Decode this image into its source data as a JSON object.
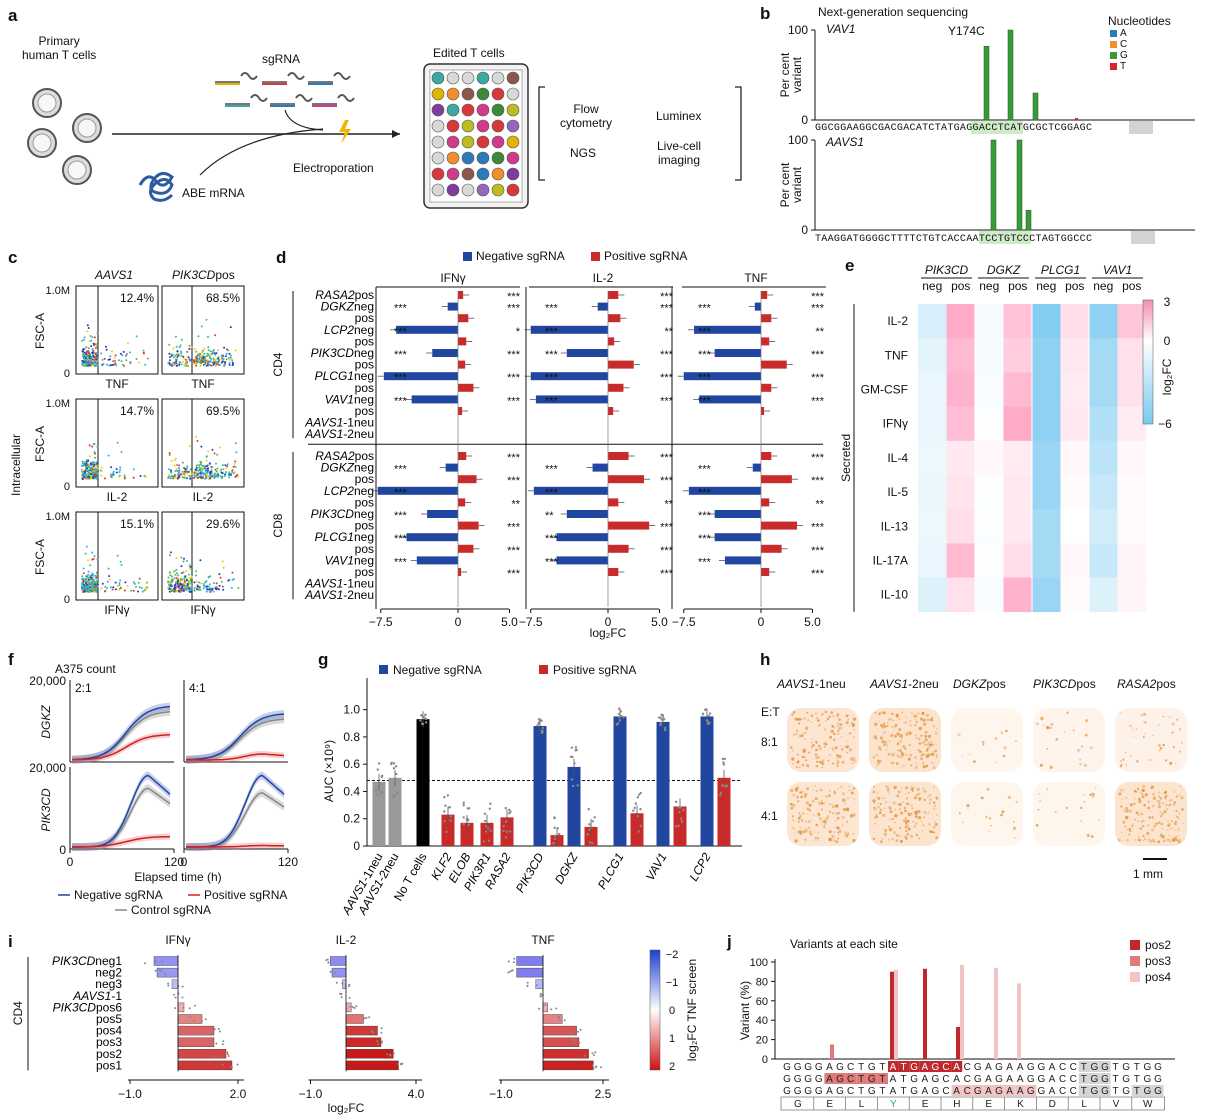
{
  "panels": {
    "a": "a",
    "b": "b",
    "c": "c",
    "d": "d",
    "e": "e",
    "f": "f",
    "g": "g",
    "h": "h",
    "i": "i",
    "j": "j"
  },
  "panel_a": {
    "primary_cells": "Primary\nhuman T cells",
    "primary_line1": "Primary",
    "primary_line2": "human T cells",
    "sgrna": "sgRNA",
    "abe": "ABE mRNA",
    "electroporation": "Electroporation",
    "edited": "Edited T cells",
    "assays": [
      "Flow",
      "cytometry",
      "Luminex",
      "NGS",
      "Live-cell",
      "imaging"
    ]
  },
  "panel_b": {
    "title": "Next-generation sequencing",
    "legend_title": "Nucleotides",
    "legend": [
      {
        "label": "A",
        "color": "#2b7bb9"
      },
      {
        "label": "C",
        "color": "#f28e2b"
      },
      {
        "label": "G",
        "color": "#3a9a3a"
      },
      {
        "label": "T",
        "color": "#d62728"
      }
    ],
    "ylabel_1": "Per cent",
    "ylabel_2": "variant",
    "vav1_label": "VAV1",
    "aavs1_label": "AAVS1",
    "mutation": "Y174C",
    "y100": "100",
    "y0": "0",
    "seq_vav1": "GGCGGAAGGCGACGACATCTATGAGGACCTCATGCGCTCGGAGC",
    "seq_aavs1": "TAAGGATGGGGCTTTTCTGTCACCAATCCTGTCCCTAGTGGCCC",
    "vav1_bars": [
      82,
      100,
      30
    ],
    "aavs1_bars": [
      100,
      100,
      22
    ]
  },
  "panel_c": {
    "col1": "AAVS1",
    "col2": "PIK3CDpos",
    "ylabel": "FSC-A",
    "side": "Intracellular",
    "ytop": "1.0M",
    "y0": "0",
    "rows": [
      {
        "x": "TNF",
        "p1": "12.4%",
        "p2": "68.5%"
      },
      {
        "x": "IL-2",
        "p1": "14.7%",
        "p2": "69.5%"
      },
      {
        "x": "IFNγ",
        "p1": "15.1%",
        "p2": "29.6%"
      }
    ]
  },
  "panel_d": {
    "legend_neg": "Negative sgRNA",
    "legend_pos": "Positive sgRNA",
    "cols": [
      "IFNγ",
      "IL-2",
      "TNF"
    ],
    "groups": [
      "CD4",
      "CD8"
    ],
    "xlabel": "log₂FC",
    "xticks": [
      "−7.5",
      "0",
      "5.0"
    ],
    "rows": [
      {
        "gene": "RASA2",
        "suffix": "pos",
        "italic_full": false
      },
      {
        "gene": "DGKZ",
        "suffix": "neg"
      },
      {
        "gene": "",
        "suffix": "pos"
      },
      {
        "gene": "LCP2",
        "suffix": "neg"
      },
      {
        "gene": "",
        "suffix": "pos"
      },
      {
        "gene": "PIK3CD",
        "suffix": "neg"
      },
      {
        "gene": "",
        "suffix": "pos"
      },
      {
        "gene": "PLCG1",
        "suffix": "neg"
      },
      {
        "gene": "",
        "suffix": "pos"
      },
      {
        "gene": "VAV1",
        "suffix": "neg"
      },
      {
        "gene": "",
        "suffix": "pos"
      },
      {
        "gene": "AAVS1",
        "suffix": "-1neu"
      },
      {
        "gene": "AAVS1",
        "suffix": "-2neu"
      }
    ],
    "cd4_values": {
      "IFNg": [
        0.5,
        -1.0,
        1.0,
        -6.0,
        0.8,
        -2.5,
        0.7,
        -7.2,
        1.5,
        -4.5,
        0.4,
        0,
        0
      ],
      "IL2": [
        1.0,
        -1.0,
        1.2,
        -7.5,
        0.6,
        -4.0,
        2.5,
        -7.5,
        1.5,
        -7.0,
        0.5,
        0,
        0
      ],
      "TNF": [
        0.6,
        -0.6,
        1.0,
        -6.5,
        0.8,
        -4.5,
        2.5,
        -7.5,
        1.0,
        -6.0,
        0.3,
        0,
        0
      ]
    },
    "cd8_values": {
      "IFNg": [
        0.8,
        -1.2,
        1.8,
        -7.8,
        0.7,
        -3.0,
        2.0,
        -5.0,
        1.5,
        -4.0,
        0.3,
        0,
        0
      ],
      "IL2": [
        2.0,
        -1.5,
        3.5,
        -7.2,
        1.0,
        -4.0,
        4.0,
        -5.0,
        2.0,
        -5.0,
        1.0,
        0,
        0
      ],
      "TNF": [
        1.0,
        -0.8,
        3.0,
        -7.0,
        0.8,
        -4.5,
        3.5,
        -4.5,
        2.0,
        -3.5,
        0.8,
        0,
        0
      ]
    },
    "cd4_sig": {
      "IFNg_left": [
        "",
        "***",
        "",
        "***",
        "",
        "***",
        "",
        "***",
        "",
        "***",
        "",
        "",
        ""
      ],
      "IFNg_right": [
        "***",
        "***",
        "",
        "*",
        "",
        "***",
        "",
        "***",
        "",
        "***",
        "",
        "",
        ""
      ],
      "IL2_left": [
        "",
        "***",
        "",
        "***",
        "",
        "***",
        "",
        "***",
        "",
        "***",
        "",
        "",
        ""
      ],
      "IL2_right": [
        "***",
        "***",
        "",
        "**",
        "",
        "***",
        "",
        "***",
        "",
        "***",
        "",
        "",
        ""
      ],
      "TNF_left": [
        "",
        "***",
        "",
        "***",
        "",
        "***",
        "",
        "***",
        "",
        "***",
        "",
        "",
        ""
      ],
      "TNF_right": [
        "***",
        "***",
        "",
        "**",
        "",
        "***",
        "",
        "***",
        "",
        "***",
        "",
        "",
        ""
      ]
    }
  },
  "panel_e": {
    "genes": [
      "PIK3CD",
      "DGKZ",
      "PLCG1",
      "VAV1"
    ],
    "sub": [
      "neg",
      "pos"
    ],
    "rows": [
      "IL-2",
      "TNF",
      "GM-CSF",
      "IFNγ",
      "IL-4",
      "IL-5",
      "IL-13",
      "IL-17A",
      "IL-10"
    ],
    "side": "Secreted",
    "scale_top": "3",
    "scale_mid": "0",
    "scale_bot": "−6",
    "scale_label": "log₂FC",
    "values": [
      [
        -1.8,
        2.2,
        -0.5,
        1.6,
        -5.5,
        0.9,
        -5.0,
        1.5
      ],
      [
        -1.2,
        1.8,
        -0.4,
        1.3,
        -5.0,
        0.6,
        -4.0,
        0.8
      ],
      [
        -1.0,
        2.0,
        -0.3,
        1.8,
        -5.0,
        0.5,
        -4.0,
        0.8
      ],
      [
        -1.0,
        1.7,
        -0.2,
        2.2,
        -5.0,
        0.6,
        -3.5,
        0.5
      ],
      [
        -0.8,
        0.6,
        0.2,
        0.5,
        -4.5,
        0.2,
        -3.0,
        0.2
      ],
      [
        -0.9,
        0.7,
        -0.1,
        0.6,
        -4.5,
        0.1,
        -2.5,
        0.1
      ],
      [
        -0.8,
        0.9,
        -0.2,
        0.6,
        -4.0,
        0.0,
        -2.0,
        0.1
      ],
      [
        -1.0,
        1.8,
        -0.2,
        0.9,
        -4.0,
        0.2,
        -2.5,
        0.3
      ],
      [
        -1.5,
        0.8,
        -0.3,
        2.0,
        -4.5,
        0.1,
        -1.5,
        0.3
      ]
    ]
  },
  "panel_f": {
    "title": "A375 count",
    "ratios": [
      "2:1",
      "4:1"
    ],
    "rows": [
      "DGKZ",
      "PIK3CD"
    ],
    "ytick": "20,000",
    "y0": "0",
    "xticks": [
      "0",
      "120"
    ],
    "xlabel": "Elapsed time (h)",
    "legend": [
      "Negative sgRNA",
      "Positive sgRNA",
      "Control sgRNA"
    ]
  },
  "panel_g": {
    "legend_neg": "Negative sgRNA",
    "legend_pos": "Positive sgRNA",
    "ylabel": "AUC (×10⁹)",
    "yticks": [
      "0",
      "0.2",
      "0.4",
      "0.6",
      "0.8",
      "1.0"
    ],
    "chart_data": {
      "type": "bar",
      "categories": [
        "AAVS1-1neu",
        "AAVS1-2neu",
        "No T cells",
        "KLF2",
        "ELOB",
        "PIK3R1",
        "RASA2",
        "PIK3CD",
        "PIK3CD+",
        "DGKZ",
        "DGKZ+",
        "PLCG1",
        "PLCG1+",
        "VAV1",
        "VAV1+",
        "LCP2",
        "LCP2+"
      ],
      "values": [
        0.47,
        0.5,
        0.93,
        0.23,
        0.17,
        0.17,
        0.21,
        0.88,
        0.08,
        0.58,
        0.14,
        0.95,
        0.24,
        0.91,
        0.29,
        0.95,
        0.5
      ],
      "ylim": [
        0,
        1.1
      ],
      "threshold": 0.48
    },
    "xlabels": [
      {
        "text": "AAVS1-1neu",
        "italic": "AAVS1",
        "rest": "-1neu"
      },
      {
        "text": "AAVS1-2neu",
        "italic": "AAVS1",
        "rest": "-2neu"
      },
      {
        "text": "No T cells",
        "italic": "",
        "rest": "No T cells"
      },
      {
        "text": "KLF2",
        "italic": "KLF2",
        "rest": ""
      },
      {
        "text": "ELOB",
        "italic": "ELOB",
        "rest": ""
      },
      {
        "text": "PIK3R1",
        "italic": "PIK3R1",
        "rest": ""
      },
      {
        "text": "RASA2",
        "italic": "RASA2",
        "rest": ""
      },
      {
        "text": "PIK3CD",
        "italic": "PIK3CD",
        "rest": ""
      },
      {
        "text": "DGKZ",
        "italic": "DGKZ",
        "rest": ""
      },
      {
        "text": "PLCG1",
        "italic": "PLCG1",
        "rest": ""
      },
      {
        "text": "VAV1",
        "italic": "VAV1",
        "rest": ""
      },
      {
        "text": "LCP2",
        "italic": "LCP2",
        "rest": ""
      }
    ]
  },
  "panel_h": {
    "cols": [
      {
        "g": "AAVS1",
        "s": "-1neu"
      },
      {
        "g": "AAVS1",
        "s": "-2neu"
      },
      {
        "g": "DGKZ",
        "s": "pos"
      },
      {
        "g": "PIK3CD",
        "s": "pos"
      },
      {
        "g": "RASA2",
        "s": "pos"
      }
    ],
    "et": "E:T",
    "rows": [
      "8:1",
      "4:1"
    ],
    "scale": "1 mm",
    "intensity": [
      [
        0.55,
        0.65,
        0.05,
        0.08,
        0.15
      ],
      [
        0.55,
        0.6,
        0.07,
        0.07,
        0.6
      ]
    ]
  },
  "panel_i": {
    "cols": [
      "IFNγ",
      "IL-2",
      "TNF"
    ],
    "side": "CD4",
    "rows": [
      {
        "g": "PIK3CD",
        "s": "neg1"
      },
      {
        "g": "",
        "s": "neg2"
      },
      {
        "g": "",
        "s": "neg3"
      },
      {
        "g": "AAVS1",
        "s": "-1"
      },
      {
        "g": "PIK3CD",
        "s": "pos6"
      },
      {
        "g": "",
        "s": "pos5"
      },
      {
        "g": "",
        "s": "pos4"
      },
      {
        "g": "",
        "s": "pos3"
      },
      {
        "g": "",
        "s": "pos2"
      },
      {
        "g": "",
        "s": "pos1"
      }
    ],
    "xticks": [
      [
        "−1.0",
        "2.0"
      ],
      [
        "−1.0",
        "4.0"
      ],
      [
        "−1.0",
        "2.5"
      ]
    ],
    "xlabel": "log₂FC",
    "values": {
      "IFNg": [
        -0.8,
        -0.7,
        -0.2,
        0,
        0.2,
        0.8,
        1.2,
        1.2,
        1.6,
        1.8
      ],
      "IL2": [
        -0.9,
        -0.8,
        -0.2,
        0,
        0.3,
        1.0,
        1.8,
        2.0,
        2.7,
        3.0
      ],
      "TNF": [
        -1.1,
        -1.1,
        -0.3,
        0,
        0.2,
        0.8,
        1.4,
        1.5,
        1.9,
        2.1
      ]
    },
    "colorbar_label": "log₂FC TNF screen",
    "colorbar_ticks": [
      "−2",
      "−1",
      "0",
      "1",
      "2"
    ]
  },
  "panel_j": {
    "title": "Variants at each site",
    "ylabel": "Variant (%)",
    "yticks": [
      "0",
      "20",
      "40",
      "60",
      "80",
      "100"
    ],
    "legend": [
      {
        "label": "pos2",
        "color": "#c0282d"
      },
      {
        "label": "pos3",
        "color": "#e07a7a"
      },
      {
        "label": "pos4",
        "color": "#f2c3c3"
      }
    ],
    "seq1": "GGGGAGCTGTATGAGCACGAGAAGGACCTGGTGTGG",
    "seq2": "GGGGAGCTGTATGAGCACGAGAAGGACCTGGTGTGG",
    "seq3": "GGGGAGCTGTATGAGCACGAGAAGGACCTGGTGTGG",
    "aa": [
      "G",
      "E",
      "L",
      "Y",
      "E",
      "H",
      "E",
      "K",
      "D",
      "L",
      "V",
      "W"
    ]
  }
}
